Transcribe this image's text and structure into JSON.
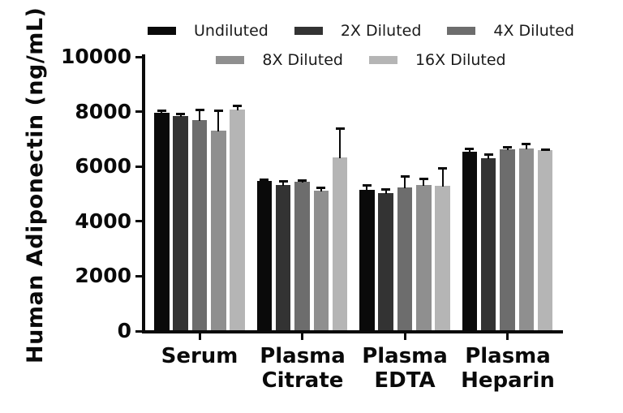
{
  "chart_data": {
    "type": "bar",
    "title": "",
    "xlabel": "",
    "ylabel": "Human Adiponectin (ng/mL)",
    "ylim": [
      0,
      10000
    ],
    "yticks": [
      0,
      2000,
      4000,
      6000,
      8000,
      10000
    ],
    "grid": false,
    "legend_position": "top",
    "legend_rows": [
      [
        "Undiluted",
        "2X Diluted",
        "4X Diluted"
      ],
      [
        "8X Diluted",
        "16X Diluted"
      ]
    ],
    "categories": [
      "Serum",
      "Plasma Citrate",
      "Plasma EDTA",
      "Plasma Heparin"
    ],
    "series": [
      {
        "name": "Undiluted",
        "color": "#0a0a0a",
        "values": [
          7950,
          5470,
          5150,
          6540
        ],
        "errors_upper": [
          120,
          90,
          200,
          150
        ]
      },
      {
        "name": "2X Diluted",
        "color": "#333333",
        "values": [
          7840,
          5330,
          5040,
          6290
        ],
        "errors_upper": [
          120,
          180,
          170,
          200
        ]
      },
      {
        "name": "4X Diluted",
        "color": "#6d6d6d",
        "values": [
          7690,
          5450,
          5250,
          6640
        ],
        "errors_upper": [
          410,
          90,
          420,
          120
        ]
      },
      {
        "name": "8X Diluted",
        "color": "#8f8f8f",
        "values": [
          7310,
          5130,
          5330,
          6660
        ],
        "errors_upper": [
          770,
          150,
          270,
          210
        ]
      },
      {
        "name": "16X Diluted",
        "color": "#b5b5b5",
        "values": [
          8080,
          6320,
          5300,
          6600
        ],
        "errors_upper": [
          180,
          1120,
          680,
          60
        ]
      }
    ],
    "error_bar_color": "#0a0a0a",
    "axis_color": "#0a0a0a",
    "background_color": "#ffffff"
  }
}
